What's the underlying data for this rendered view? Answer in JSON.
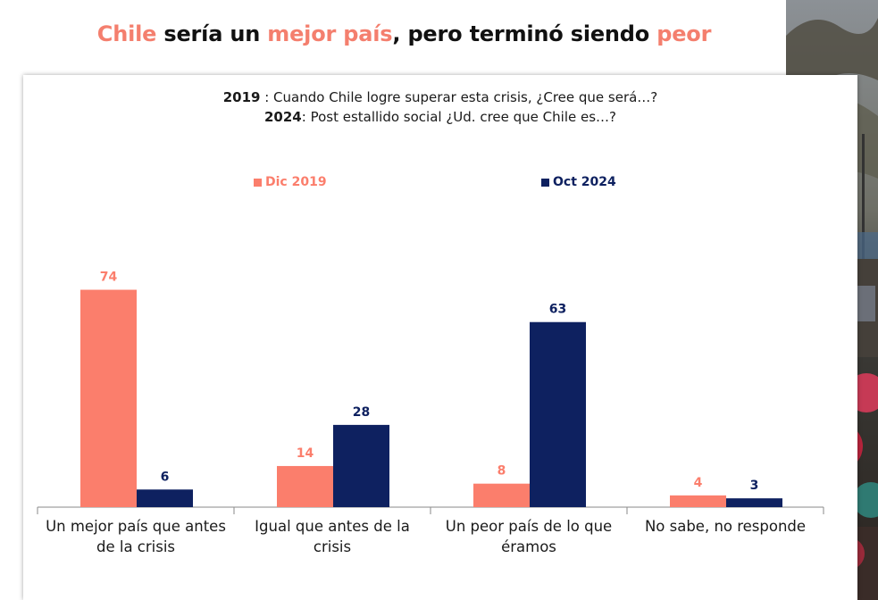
{
  "headline": {
    "parts": [
      {
        "text": "Chile",
        "accent": true
      },
      {
        "text": " sería un ",
        "accent": false
      },
      {
        "text": "mejor país",
        "accent": true
      },
      {
        "text": ", pero terminó siendo ",
        "accent": false
      },
      {
        "text": "peor",
        "accent": true
      }
    ]
  },
  "question": {
    "line1_year": "2019",
    "line1_text": " : Cuando Chile logre superar esta crisis, ¿Cree que será…?",
    "line2_year": "2024",
    "line2_text": ": Post estallido social ¿Ud. cree que Chile es…?"
  },
  "colors": {
    "accent": "#f47f6e",
    "series1": "#fb7e6c",
    "series2": "#0e2160",
    "axis": "#8a8a8a"
  },
  "chart_data": {
    "type": "bar",
    "categories": [
      "Un mejor país que antes de la crisis",
      "Igual que antes de la crisis",
      "Un peor país de lo que éramos",
      "No sabe, no responde"
    ],
    "series": [
      {
        "name": "Dic 2019",
        "values": [
          74,
          14,
          8,
          4
        ]
      },
      {
        "name": "Oct 2024",
        "values": [
          6,
          28,
          63,
          3
        ]
      }
    ],
    "ylim": [
      0,
      80
    ],
    "grid": false,
    "legend_position": "top",
    "data_labels": true
  }
}
